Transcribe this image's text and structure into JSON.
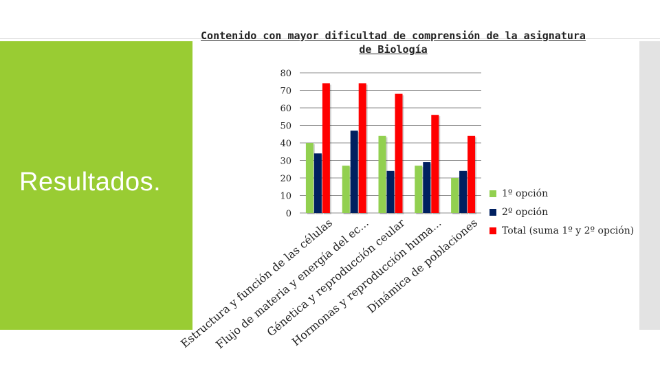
{
  "slide": {
    "title": "Resultados."
  },
  "chart_data": {
    "type": "bar",
    "title": "Contenido con mayor dificultad de comprensión de la asignatura de Biología",
    "categories": [
      "Estructura y función de las células",
      "Flujo de materia y energía del ec...",
      "Génetica y reproducción ceular",
      "Hormonas y reproducción huma...",
      "Dinámica de poblaciones"
    ],
    "series": [
      {
        "name": "1º opción",
        "color": "#92d050",
        "values": [
          40,
          27,
          44,
          27,
          20
        ]
      },
      {
        "name": "2º opción",
        "color": "#002060",
        "values": [
          34,
          47,
          24,
          29,
          24
        ]
      },
      {
        "name": "Total (suma 1º y 2º opción)",
        "color": "#ff0000",
        "values": [
          74,
          74,
          68,
          56,
          44
        ]
      }
    ],
    "y_ticks": [
      0,
      10,
      20,
      30,
      40,
      50,
      60,
      70,
      80
    ],
    "ylim": [
      0,
      80
    ],
    "grid": true,
    "legend_position": "right"
  }
}
